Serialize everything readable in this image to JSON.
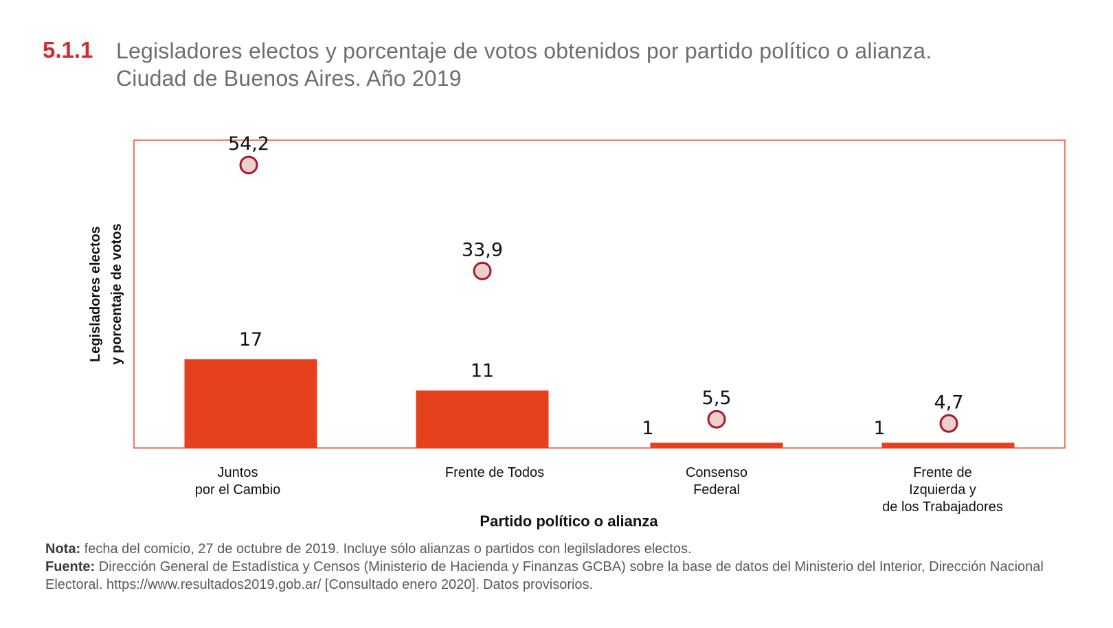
{
  "header": {
    "number": "5.1.1",
    "line1": "Legisladores electos y porcentaje de votos obtenidos por partido político o alianza.",
    "line2": "Ciudad de Buenos Aires. Año 2019"
  },
  "colors": {
    "bar": "#e5411e",
    "frame": "#ef4e35",
    "dot_fill": "#edcfcb",
    "dot_stroke": "#a8192e",
    "title_number": "#d7282f"
  },
  "chart_data": {
    "type": "bar",
    "title": "Legisladores electos y porcentaje de votos obtenidos por partido político o alianza. Ciudad de Buenos Aires. Año 2019",
    "xlabel": "Partido político o alianza",
    "ylabel_lines": [
      "Legisladores  electos",
      "y porcentaje de votos"
    ],
    "categories": [
      [
        "Juntos",
        "por el Cambio"
      ],
      [
        "Frente de Todos"
      ],
      [
        "Consenso",
        "Federal"
      ],
      [
        "Frente de",
        "Izquierda y",
        "de los Trabajadores"
      ]
    ],
    "series": [
      {
        "name": "Legisladores electos",
        "type": "bar",
        "values": [
          17,
          11,
          1,
          1
        ],
        "labels": [
          "17",
          "11",
          "1",
          "1"
        ]
      },
      {
        "name": "Porcentaje de votos",
        "type": "scatter",
        "values": [
          54.2,
          33.9,
          5.5,
          4.7
        ],
        "labels": [
          "54,2",
          "33,9",
          "5,5",
          "4,7"
        ]
      }
    ],
    "ylim": [
      0,
      60
    ],
    "grid": false,
    "legend": "none"
  },
  "notes": {
    "nota_label": "Nota:",
    "nota_text": "  fecha del comicio, 27 de octubre de 2019. Incluye sólo alianzas o partidos con legilsladores electos.",
    "fuente_label": "Fuente:",
    "fuente_text": " Dirección General de Estadística y Censos (Ministerio de Hacienda y Finanzas GCBA) sobre la base de datos del Ministerio del Interior, Dirección Nacional Electoral. https://www.resultados2019.gob.ar/ [Consultado enero 2020]. Datos provisorios."
  }
}
